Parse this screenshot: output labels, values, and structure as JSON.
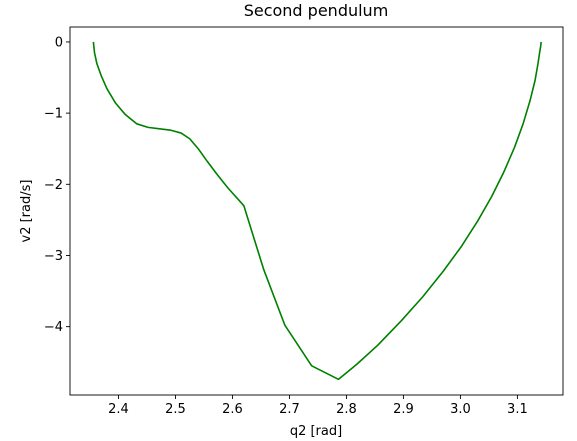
{
  "chart_data": {
    "type": "line",
    "title": "Second pendulum",
    "xlabel": "q2 [rad]",
    "ylabel": "v2 [rad/s]",
    "xlim": [
      2.315,
      3.18
    ],
    "ylim": [
      -4.96,
      0.21
    ],
    "xticks": [
      2.4,
      2.5,
      2.6,
      2.7,
      2.8,
      2.9,
      3.0,
      3.1
    ],
    "xtick_labels": [
      "2.4",
      "2.5",
      "2.6",
      "2.7",
      "2.8",
      "2.9",
      "3.0",
      "3.1"
    ],
    "yticks": [
      0,
      -1,
      -2,
      -3,
      -4
    ],
    "ytick_labels": [
      "0",
      "−1",
      "−2",
      "−3",
      "−4"
    ],
    "grid": false,
    "series": [
      {
        "color": "#008000",
        "x": [
          2.356,
          2.358,
          2.362,
          2.37,
          2.38,
          2.395,
          2.412,
          2.432,
          2.452,
          2.472,
          2.492,
          2.51,
          2.525,
          2.54,
          2.556,
          2.573,
          2.592,
          2.62,
          2.655,
          2.692,
          2.739,
          2.786,
          2.818,
          2.855,
          2.896,
          2.934,
          2.97,
          3.002,
          3.03,
          3.055,
          3.076,
          3.095,
          3.11,
          3.122,
          3.131,
          3.136,
          3.139,
          3.141,
          3.1415,
          3.1416
        ],
        "y": [
          0.0,
          -0.15,
          -0.3,
          -0.48,
          -0.66,
          -0.86,
          -1.02,
          -1.15,
          -1.2,
          -1.22,
          -1.24,
          -1.28,
          -1.36,
          -1.5,
          -1.68,
          -1.86,
          -2.05,
          -2.3,
          -3.2,
          -3.98,
          -4.55,
          -4.74,
          -4.53,
          -4.26,
          -3.92,
          -3.58,
          -3.22,
          -2.87,
          -2.52,
          -2.17,
          -1.83,
          -1.48,
          -1.15,
          -0.83,
          -0.54,
          -0.31,
          -0.15,
          -0.05,
          -0.01,
          0.0
        ]
      }
    ]
  }
}
